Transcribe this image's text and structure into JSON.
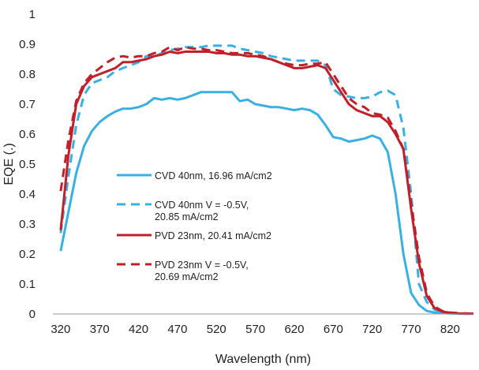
{
  "chart_data": {
    "type": "line",
    "title": "",
    "xlabel": "Wavelength (nm)",
    "ylabel": "EQE (.)",
    "xlim": [
      310,
      850
    ],
    "ylim": [
      0,
      1
    ],
    "x_ticks": [
      "320",
      "370",
      "420",
      "470",
      "520",
      "570",
      "620",
      "670",
      "720",
      "770",
      "820"
    ],
    "y_ticks": [
      "0",
      "0.1",
      "0.2",
      "0.3",
      "0.4",
      "0.5",
      "0.6",
      "0.7",
      "0.8",
      "0.9",
      "1"
    ],
    "grid": false,
    "legend_placement": "center-left",
    "series": [
      {
        "name": "CVD 40nm, 16.96 mA/cm2",
        "label_lines": [
          "CVD 40nm, 16.96 mA/cm2"
        ],
        "color": "#3ab0e2",
        "dash": "solid",
        "x": [
          320,
          330,
          340,
          350,
          360,
          370,
          380,
          390,
          400,
          410,
          420,
          430,
          440,
          450,
          460,
          470,
          480,
          490,
          500,
          510,
          520,
          530,
          540,
          550,
          560,
          570,
          580,
          590,
          600,
          610,
          620,
          630,
          640,
          650,
          660,
          670,
          680,
          690,
          700,
          710,
          720,
          730,
          740,
          750,
          760,
          770,
          780,
          790,
          800,
          810,
          820,
          830,
          840,
          850
        ],
        "y": [
          0.21,
          0.34,
          0.47,
          0.56,
          0.61,
          0.64,
          0.66,
          0.675,
          0.685,
          0.685,
          0.69,
          0.7,
          0.72,
          0.715,
          0.72,
          0.715,
          0.72,
          0.73,
          0.74,
          0.74,
          0.74,
          0.74,
          0.74,
          0.71,
          0.715,
          0.7,
          0.695,
          0.69,
          0.69,
          0.685,
          0.68,
          0.685,
          0.68,
          0.665,
          0.63,
          0.59,
          0.585,
          0.575,
          0.58,
          0.585,
          0.595,
          0.585,
          0.54,
          0.4,
          0.2,
          0.07,
          0.03,
          0.01,
          0.005,
          0.003,
          0.002,
          0.001,
          0.001,
          0.001
        ]
      },
      {
        "name": "CVD 40nm V = -0.5V, 20.85 mA/cm2",
        "label_lines": [
          "CVD 40nm V = -0.5V,",
          "20.85 mA/cm2"
        ],
        "color": "#3ab0e2",
        "dash": "dashed",
        "x": [
          320,
          330,
          340,
          350,
          360,
          370,
          380,
          390,
          400,
          410,
          420,
          430,
          440,
          450,
          460,
          470,
          480,
          490,
          500,
          510,
          520,
          530,
          540,
          550,
          560,
          570,
          580,
          590,
          600,
          610,
          620,
          630,
          640,
          650,
          660,
          670,
          680,
          690,
          700,
          710,
          720,
          730,
          740,
          750,
          760,
          770,
          780,
          790,
          800,
          810,
          820,
          830,
          840,
          850
        ],
        "y": [
          0.27,
          0.46,
          0.63,
          0.73,
          0.77,
          0.78,
          0.79,
          0.81,
          0.82,
          0.83,
          0.84,
          0.86,
          0.86,
          0.87,
          0.88,
          0.885,
          0.89,
          0.89,
          0.89,
          0.895,
          0.895,
          0.895,
          0.895,
          0.885,
          0.88,
          0.875,
          0.87,
          0.86,
          0.855,
          0.85,
          0.845,
          0.845,
          0.845,
          0.845,
          0.83,
          0.75,
          0.73,
          0.725,
          0.72,
          0.72,
          0.725,
          0.74,
          0.745,
          0.73,
          0.62,
          0.4,
          0.1,
          0.04,
          0.015,
          0.005,
          0.003,
          0.001,
          0.001,
          0.001
        ]
      },
      {
        "name": "PVD 23nm, 20.41 mA/cm2",
        "label_lines": [
          "PVD 23nm, 20.41 mA/cm2"
        ],
        "color": "#c0202a",
        "dash": "solid",
        "x": [
          320,
          330,
          340,
          350,
          360,
          370,
          380,
          390,
          400,
          410,
          420,
          430,
          440,
          450,
          460,
          470,
          480,
          490,
          500,
          510,
          520,
          530,
          540,
          550,
          560,
          570,
          580,
          590,
          600,
          610,
          620,
          630,
          640,
          650,
          660,
          670,
          680,
          690,
          700,
          710,
          720,
          730,
          740,
          750,
          760,
          770,
          780,
          790,
          800,
          810,
          820,
          830,
          840,
          850
        ],
        "y": [
          0.28,
          0.53,
          0.7,
          0.76,
          0.79,
          0.8,
          0.81,
          0.82,
          0.84,
          0.84,
          0.845,
          0.85,
          0.86,
          0.865,
          0.875,
          0.87,
          0.875,
          0.875,
          0.875,
          0.875,
          0.87,
          0.87,
          0.865,
          0.865,
          0.86,
          0.86,
          0.855,
          0.85,
          0.84,
          0.83,
          0.82,
          0.82,
          0.825,
          0.83,
          0.82,
          0.78,
          0.74,
          0.7,
          0.68,
          0.67,
          0.66,
          0.66,
          0.64,
          0.6,
          0.55,
          0.35,
          0.17,
          0.06,
          0.02,
          0.008,
          0.004,
          0.002,
          0.001,
          0.001
        ]
      },
      {
        "name": "PVD 23nm V = -0.5V, 20.69 mA/cm2",
        "label_lines": [
          "PVD 23nm V = -0.5V,",
          "20.69 mA/cm2"
        ],
        "color": "#c0202a",
        "dash": "dashed",
        "x": [
          320,
          330,
          340,
          350,
          360,
          370,
          380,
          390,
          400,
          410,
          420,
          430,
          440,
          450,
          460,
          470,
          480,
          490,
          500,
          510,
          520,
          530,
          540,
          550,
          560,
          570,
          580,
          590,
          600,
          610,
          620,
          630,
          640,
          650,
          660,
          670,
          680,
          690,
          700,
          710,
          720,
          730,
          740,
          750,
          760,
          770,
          780,
          790,
          800,
          810,
          820,
          830,
          840,
          850
        ],
        "y": [
          0.41,
          0.58,
          0.71,
          0.77,
          0.8,
          0.82,
          0.84,
          0.855,
          0.86,
          0.855,
          0.86,
          0.86,
          0.87,
          0.875,
          0.89,
          0.88,
          0.89,
          0.885,
          0.885,
          0.88,
          0.88,
          0.875,
          0.87,
          0.87,
          0.87,
          0.865,
          0.86,
          0.85,
          0.84,
          0.835,
          0.83,
          0.83,
          0.835,
          0.835,
          0.84,
          0.8,
          0.76,
          0.72,
          0.7,
          0.69,
          0.67,
          0.665,
          0.655,
          0.61,
          0.55,
          0.37,
          0.19,
          0.07,
          0.025,
          0.01,
          0.005,
          0.003,
          0.002,
          0.001
        ]
      }
    ]
  }
}
